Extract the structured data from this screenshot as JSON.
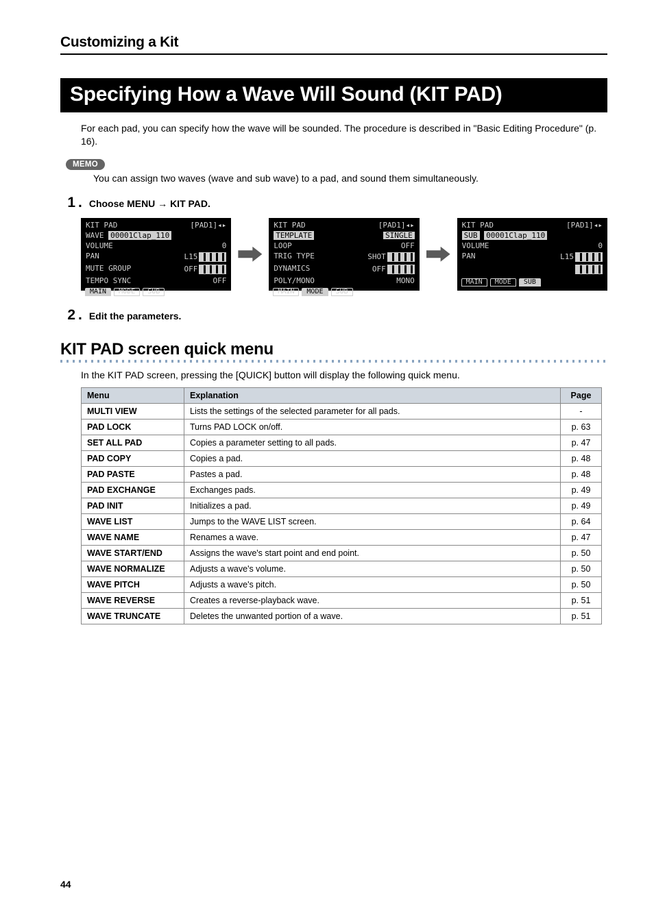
{
  "breadcrumb": "Customizing a Kit",
  "title": "Specifying How a Wave Will Sound (KIT PAD)",
  "intro": "For each pad, you can specify how the wave will be sounded. The procedure is described in \"Basic Editing Procedure\" (p. 16).",
  "memo": {
    "badge": "MEMO",
    "text": "You can assign two waves (wave and sub wave) to a pad, and sound them simultaneously."
  },
  "steps": {
    "s1": {
      "num": "1",
      "text": "Choose MENU → KIT PAD."
    },
    "s2": {
      "num": "2",
      "text": "Edit the parameters."
    }
  },
  "lcd": {
    "a": {
      "title": "KIT PAD",
      "pad": "[PAD1]◂▸",
      "row1a": "WAVE",
      "row1b": "00001Clap_110",
      "r2a": "VOLUME",
      "r2b": "0",
      "r3a": "PAN",
      "r3b": "L15",
      "r4a": "MUTE GROUP",
      "r4b": "OFF",
      "r5a": "TEMPO SYNC",
      "r5b": "OFF",
      "t1": "MAIN",
      "t2": "MODE",
      "t3": "SUB"
    },
    "b": {
      "title": "KIT PAD",
      "pad": "[PAD1]◂▸",
      "row1a": "TEMPLATE",
      "row1b": "SINGLE",
      "r2a": "LOOP",
      "r2b": "OFF",
      "r3a": "TRIG TYPE",
      "r3b": "SHOT",
      "r4a": "DYNAMICS",
      "r4b": "OFF",
      "r5a": "POLY/MONO",
      "r5b": "MONO",
      "t1": "MAIN",
      "t2": "MODE",
      "t3": "SUB"
    },
    "c": {
      "title": "KIT PAD",
      "pad": "[PAD1]◂▸",
      "row1a": "SUB",
      "row1b": "00001Clap_110",
      "r2a": "VOLUME",
      "r2b": "0",
      "r3a": "PAN",
      "r3b": "L15",
      "t1": "MAIN",
      "t2": "MODE",
      "t3": "SUB"
    }
  },
  "section2": {
    "heading": "KIT PAD screen quick menu",
    "desc": "In the KIT PAD screen, pressing the [QUICK] button will display the following quick menu."
  },
  "table": {
    "headers": {
      "menu": "Menu",
      "exp": "Explanation",
      "page": "Page"
    },
    "rows": [
      {
        "m": "MULTI VIEW",
        "e": "Lists the settings of the selected parameter for all pads.",
        "p": "-"
      },
      {
        "m": "PAD LOCK",
        "e": "Turns PAD LOCK on/off.",
        "p": "p. 63"
      },
      {
        "m": "SET ALL PAD",
        "e": "Copies a parameter setting to all pads.",
        "p": "p. 47"
      },
      {
        "m": "PAD COPY",
        "e": "Copies a pad.",
        "p": "p. 48"
      },
      {
        "m": "PAD PASTE",
        "e": "Pastes a pad.",
        "p": "p. 48"
      },
      {
        "m": "PAD EXCHANGE",
        "e": "Exchanges pads.",
        "p": "p. 49"
      },
      {
        "m": "PAD INIT",
        "e": "Initializes a pad.",
        "p": "p. 49"
      },
      {
        "m": "WAVE LIST",
        "e": "Jumps to the WAVE LIST screen.",
        "p": "p. 64"
      },
      {
        "m": "WAVE NAME",
        "e": "Renames a wave.",
        "p": "p. 47"
      },
      {
        "m": "WAVE START/END",
        "e": "Assigns the wave's start point and end point.",
        "p": "p. 50"
      },
      {
        "m": "WAVE NORMALIZE",
        "e": "Adjusts a wave's volume.",
        "p": "p. 50"
      },
      {
        "m": "WAVE PITCH",
        "e": "Adjusts a wave's pitch.",
        "p": "p. 50"
      },
      {
        "m": "WAVE REVERSE",
        "e": "Creates a reverse-playback wave.",
        "p": "p. 51"
      },
      {
        "m": "WAVE TRUNCATE",
        "e": "Deletes the unwanted portion of a wave.",
        "p": "p. 51"
      }
    ]
  },
  "pageNumber": "44"
}
